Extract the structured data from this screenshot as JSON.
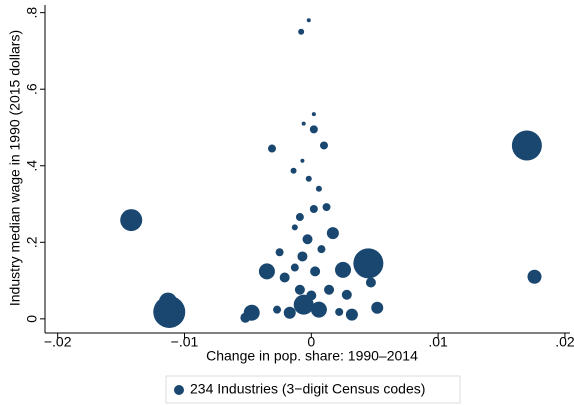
{
  "chart_data": {
    "type": "scatter",
    "x_label": "Change in pop. share: 1990–2014",
    "y_label": "Industry median wage in 1990 (2015 dollars)",
    "xlim": [
      -0.021,
      0.0204
    ],
    "ylim": [
      -0.037,
      0.82
    ],
    "xticks": [
      {
        "value": -0.02,
        "label": "−.02"
      },
      {
        "value": -0.01,
        "label": "−.01"
      },
      0,
      {
        "value": 0.01,
        "label": ".01"
      },
      {
        "value": 0.02,
        "label": ".02"
      }
    ],
    "yticks": [
      0,
      {
        "value": 0.2,
        "label": ".2"
      },
      {
        "value": 0.4,
        "label": ".4"
      },
      {
        "value": 0.6,
        "label": ".6"
      },
      {
        "value": 0.8,
        "label": ".8"
      }
    ],
    "x": [
      -0.0002,
      -0.0008,
      0.0002,
      -0.0006,
      0.0002,
      -0.0031,
      0.001,
      0.017,
      -0.0142,
      0.0176,
      0.0045,
      0.0025,
      0.0017,
      -0.0035,
      -0.0112,
      -0.0113,
      -0.0047,
      -0.0052,
      0.0052,
      0.0032,
      -0.0006,
      0.0006,
      -0.0017,
      0.0028,
      0.0047,
      -0.0013,
      -0.0025,
      -0.0009,
      0.0002,
      0.0012,
      0.0006,
      -0.0002,
      -0.0007,
      -0.0014,
      -0.0003,
      -0.0007,
      0.0003,
      -0.0021,
      0.0014,
      -0.0009,
      0.0008,
      -0.0013,
      0.0022,
      -0.0027,
      0
    ],
    "series": [
      {
        "name": "234 Industries (3−digit Census codes)",
        "color": "#1a476f",
        "values": [
          0.78,
          0.75,
          0.535,
          0.51,
          0.495,
          0.445,
          0.453,
          0.453,
          0.258,
          0.11,
          0.145,
          0.128,
          0.224,
          0.124,
          0.018,
          0.045,
          0.016,
          0.003,
          0.029,
          0.011,
          0.037,
          0.024,
          0.016,
          0.063,
          0.095,
          0.134,
          0.174,
          0.266,
          0.287,
          0.292,
          0.34,
          0.366,
          0.413,
          0.387,
          0.208,
          0.163,
          0.124,
          0.108,
          0.076,
          0.076,
          0.182,
          0.239,
          0.018,
          0.024,
          0.061
        ],
        "sizes": [
          2,
          3,
          2,
          2,
          4,
          4,
          4,
          15,
          11,
          7,
          15,
          8,
          6,
          8,
          16,
          9,
          8,
          5,
          6,
          6,
          10,
          8,
          6,
          5,
          5,
          4,
          4,
          4,
          4,
          4,
          3,
          3,
          2,
          3,
          5,
          5,
          5,
          5,
          5,
          5,
          4,
          3,
          4,
          4,
          5
        ]
      }
    ]
  }
}
